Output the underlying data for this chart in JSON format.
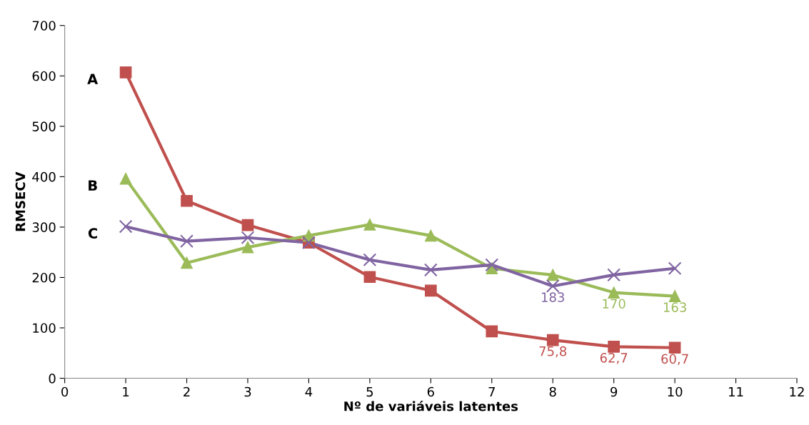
{
  "chart_data": {
    "type": "line",
    "xlabel": "Nº de variáveis latentes",
    "ylabel": "RMSECV",
    "x": [
      1,
      2,
      3,
      4,
      5,
      6,
      7,
      8,
      9,
      10
    ],
    "series": [
      {
        "color": "#c0504d",
        "marker": "square",
        "values": [
          607,
          352,
          304,
          269,
          201,
          174,
          93,
          75.8,
          62.7,
          60.7
        ],
        "value_labels": [
          null,
          null,
          null,
          null,
          null,
          null,
          null,
          "75,8",
          "62,7",
          "60,7"
        ]
      },
      {
        "color": "#9bbb59",
        "marker": "triangle",
        "values": [
          396,
          229,
          260,
          283,
          305,
          283,
          218,
          205,
          170,
          163
        ],
        "value_labels": [
          null,
          null,
          null,
          null,
          null,
          null,
          null,
          null,
          "170",
          "163"
        ]
      },
      {
        "color": "#8064a2",
        "marker": "cross",
        "values": [
          301,
          272,
          279,
          269,
          235,
          215,
          225,
          183,
          205,
          218
        ],
        "value_labels": [
          null,
          null,
          null,
          null,
          null,
          null,
          null,
          "183",
          null,
          null
        ]
      }
    ],
    "annotations": [
      "A",
      "B",
      "C"
    ],
    "xlim": [
      0,
      12
    ],
    "xticks": [
      0,
      1,
      2,
      3,
      4,
      5,
      6,
      7,
      8,
      9,
      10,
      11,
      12
    ],
    "ylim": [
      0,
      700
    ],
    "yticks": [
      0,
      100,
      200,
      300,
      400,
      500,
      600,
      700
    ],
    "grid": false,
    "legend": false,
    "line_style": "solid"
  }
}
